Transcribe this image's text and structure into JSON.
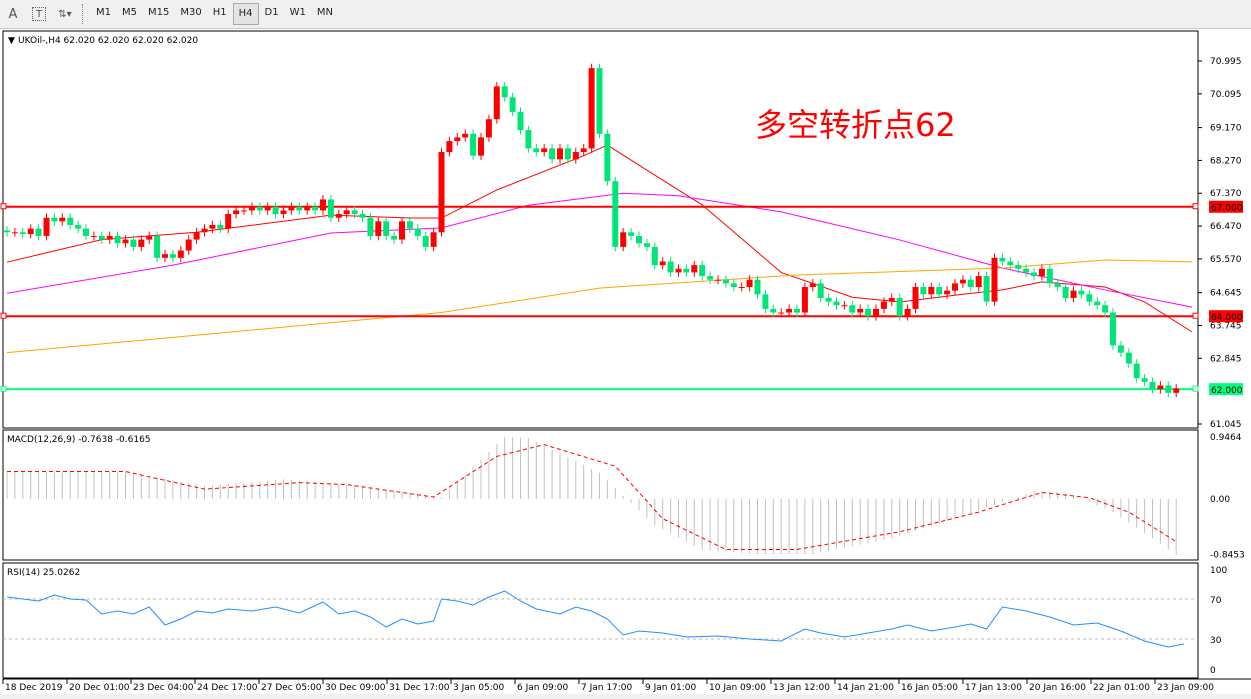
{
  "toolbar": {
    "tools": [
      {
        "icon": "text-label-icon",
        "glyph": "A"
      },
      {
        "icon": "text-box-icon",
        "glyph": "T"
      },
      {
        "icon": "arrows-dropdown-icon",
        "glyph": "⇅▾"
      }
    ],
    "timeframes": [
      "M1",
      "M5",
      "M15",
      "M30",
      "H1",
      "H4",
      "D1",
      "W1",
      "MN"
    ],
    "active_timeframe": "H4"
  },
  "main": {
    "header": "UKOil-,H4  62.020 62.020 62.020 62.020",
    "annotation": "多空转折点62",
    "annotation_color": "#ff0000",
    "price_ticks": [
      "70.995",
      "70.095",
      "69.170",
      "68.270",
      "67.370",
      "66.470",
      "65.570",
      "64.645",
      "63.745",
      "62.845",
      "61.045"
    ],
    "hlines": [
      {
        "price": 67.0,
        "label": "67.000",
        "color": "#ff0000"
      },
      {
        "price": 64.0,
        "label": "64.000",
        "color": "#ff0000"
      },
      {
        "price": 62.0,
        "label": "62.000",
        "color": "#00ff7f"
      }
    ],
    "bull_color": "#ff0000",
    "bear_color": "#00e676"
  },
  "chart_data": {
    "type": "candlestick",
    "ylim": [
      61.045,
      70.995
    ],
    "closes": [
      66.3,
      66.3,
      66.25,
      66.4,
      66.2,
      66.7,
      66.6,
      66.7,
      66.5,
      66.4,
      66.2,
      66.2,
      66.1,
      66.2,
      66.0,
      66.1,
      65.9,
      66.1,
      66.2,
      65.6,
      65.7,
      65.6,
      65.8,
      66.1,
      66.3,
      66.4,
      66.5,
      66.4,
      66.8,
      66.9,
      66.9,
      67.0,
      66.9,
      67.0,
      66.8,
      66.9,
      67.0,
      66.9,
      67.0,
      66.9,
      67.2,
      66.7,
      66.8,
      66.9,
      66.8,
      66.7,
      66.2,
      66.6,
      66.2,
      66.1,
      66.6,
      66.4,
      66.2,
      65.9,
      66.3,
      68.5,
      68.8,
      68.9,
      69.0,
      68.4,
      68.9,
      69.4,
      70.3,
      70.0,
      69.6,
      69.1,
      68.6,
      68.5,
      68.6,
      68.3,
      68.6,
      68.3,
      68.5,
      68.6,
      70.8,
      69.0,
      67.7,
      65.9,
      66.3,
      66.2,
      66.0,
      65.9,
      65.4,
      65.5,
      65.2,
      65.3,
      65.2,
      65.4,
      65.1,
      65.0,
      65.0,
      64.9,
      64.8,
      64.8,
      65.0,
      64.6,
      64.2,
      64.1,
      64.1,
      64.2,
      64.1,
      64.8,
      64.9,
      64.5,
      64.4,
      64.3,
      64.3,
      64.1,
      64.2,
      64.0,
      64.2,
      64.4,
      64.5,
      64.0,
      64.2,
      64.8,
      64.6,
      64.8,
      64.6,
      64.7,
      64.9,
      65.0,
      64.8,
      65.1,
      64.4,
      65.6,
      65.5,
      65.4,
      65.3,
      65.2,
      65.1,
      65.3,
      64.9,
      64.8,
      64.5,
      64.7,
      64.6,
      64.4,
      64.3,
      64.1,
      63.2,
      63.0,
      62.7,
      62.3,
      62.2,
      62.0,
      62.1,
      61.9,
      62.02
    ],
    "moving_averages": [
      {
        "color": "#ff0000",
        "points": [
          [
            0,
            65.48
          ],
          [
            12,
            66.1
          ],
          [
            24,
            66.3
          ],
          [
            41,
            66.77
          ],
          [
            51,
            66.69
          ],
          [
            55,
            66.69
          ],
          [
            62,
            67.46
          ],
          [
            73,
            68.4
          ],
          [
            76,
            68.69
          ],
          [
            80,
            68.14
          ],
          [
            88,
            67.05
          ],
          [
            98,
            65.2
          ],
          [
            107,
            64.52
          ],
          [
            113,
            64.39
          ],
          [
            121,
            64.6
          ],
          [
            126,
            64.72
          ],
          [
            131,
            64.94
          ],
          [
            139,
            64.8
          ],
          [
            144,
            64.39
          ],
          [
            150,
            63.57
          ]
        ]
      },
      {
        "color": "#ff00ff",
        "points": [
          [
            0,
            64.63
          ],
          [
            21,
            65.4
          ],
          [
            41,
            66.28
          ],
          [
            55,
            66.42
          ],
          [
            66,
            67.04
          ],
          [
            78,
            67.37
          ],
          [
            85,
            67.3
          ],
          [
            98,
            66.86
          ],
          [
            113,
            66.09
          ],
          [
            126,
            65.32
          ],
          [
            139,
            64.72
          ],
          [
            150,
            64.25
          ]
        ]
      },
      {
        "color": "#ffa500",
        "points": [
          [
            0,
            63.0
          ],
          [
            55,
            64.1
          ],
          [
            75,
            64.77
          ],
          [
            100,
            65.13
          ],
          [
            126,
            65.32
          ],
          [
            139,
            65.54
          ],
          [
            150,
            65.49
          ]
        ]
      }
    ],
    "x_tick_labels": [
      "18 Dec 2019",
      "20 Dec 01:00",
      "23 Dec 04:00",
      "24 Dec 17:00",
      "27 Dec 05:00",
      "30 Dec 09:00",
      "31 Dec 17:00",
      "3 Jan 05:00",
      "6 Jan 09:00",
      "7 Jan 17:00",
      "9 Jan 01:00",
      "10 Jan 09:00",
      "13 Jan 12:00",
      "14 Jan 21:00",
      "16 Jan 05:00",
      "17 Jan 13:00",
      "20 Jan 16:00",
      "22 Jan 01:00",
      "23 Jan 09:00"
    ],
    "macd": {
      "label": "MACD(12,26,9) -0.7638 -0.6165",
      "ticks": [
        "0.9464",
        "0.00",
        "-0.8453"
      ],
      "ylim": [
        -0.8453,
        0.9464
      ],
      "histogram": [
        [
          0,
          0.42
        ],
        [
          15,
          0.42
        ],
        [
          25,
          0.2
        ],
        [
          35,
          0.3
        ],
        [
          45,
          0.2
        ],
        [
          55,
          0.02
        ],
        [
          60,
          0.6
        ],
        [
          63,
          0.95
        ],
        [
          66,
          0.93
        ],
        [
          75,
          0.4
        ],
        [
          78,
          0.05
        ],
        [
          82,
          -0.4
        ],
        [
          88,
          -0.78
        ],
        [
          95,
          -0.84
        ],
        [
          102,
          -0.84
        ],
        [
          112,
          -0.6
        ],
        [
          120,
          -0.3
        ],
        [
          126,
          -0.05
        ],
        [
          130,
          0.12
        ],
        [
          134,
          0.1
        ],
        [
          140,
          -0.2
        ],
        [
          145,
          -0.6
        ],
        [
          148,
          -0.85
        ]
      ],
      "signal": [
        [
          0,
          0.42
        ],
        [
          15,
          0.42
        ],
        [
          25,
          0.15
        ],
        [
          37,
          0.25
        ],
        [
          43,
          0.22
        ],
        [
          54,
          0.03
        ],
        [
          62,
          0.65
        ],
        [
          68,
          0.83
        ],
        [
          77,
          0.5
        ],
        [
          83,
          -0.3
        ],
        [
          91,
          -0.77
        ],
        [
          100,
          -0.77
        ],
        [
          113,
          -0.5
        ],
        [
          123,
          -0.2
        ],
        [
          131,
          0.1
        ],
        [
          137,
          0.02
        ],
        [
          142,
          -0.2
        ],
        [
          148,
          -0.65
        ]
      ],
      "histogram_color": "#c0c0c0",
      "signal_color": "#ff0000"
    },
    "rsi": {
      "label": "RSI(14) 25.0262",
      "ticks": [
        "100",
        "70",
        "30",
        "0"
      ],
      "levels": [
        70,
        30
      ],
      "ylim": [
        0,
        100
      ],
      "color": "#1e90ff",
      "points": [
        [
          0,
          72
        ],
        [
          4,
          68
        ],
        [
          6,
          74
        ],
        [
          8,
          70
        ],
        [
          10,
          69
        ],
        [
          12,
          55
        ],
        [
          14,
          58
        ],
        [
          16,
          55
        ],
        [
          18,
          62
        ],
        [
          20,
          44
        ],
        [
          22,
          50
        ],
        [
          24,
          58
        ],
        [
          26,
          56
        ],
        [
          28,
          60
        ],
        [
          31,
          58
        ],
        [
          34,
          62
        ],
        [
          37,
          56
        ],
        [
          40,
          67
        ],
        [
          42,
          55
        ],
        [
          44,
          58
        ],
        [
          46,
          52
        ],
        [
          48,
          42
        ],
        [
          50,
          50
        ],
        [
          52,
          45
        ],
        [
          54,
          48
        ],
        [
          55,
          70
        ],
        [
          57,
          68
        ],
        [
          59,
          64
        ],
        [
          61,
          72
        ],
        [
          63,
          78
        ],
        [
          65,
          68
        ],
        [
          67,
          60
        ],
        [
          70,
          55
        ],
        [
          72,
          62
        ],
        [
          74,
          58
        ],
        [
          76,
          50
        ],
        [
          78,
          34
        ],
        [
          80,
          38
        ],
        [
          83,
          36
        ],
        [
          86,
          32
        ],
        [
          90,
          33
        ],
        [
          94,
          30
        ],
        [
          98,
          28
        ],
        [
          101,
          40
        ],
        [
          103,
          36
        ],
        [
          106,
          32
        ],
        [
          109,
          36
        ],
        [
          112,
          40
        ],
        [
          114,
          44
        ],
        [
          117,
          38
        ],
        [
          120,
          42
        ],
        [
          122,
          45
        ],
        [
          124,
          40
        ],
        [
          126,
          62
        ],
        [
          129,
          58
        ],
        [
          132,
          52
        ],
        [
          135,
          44
        ],
        [
          138,
          46
        ],
        [
          141,
          38
        ],
        [
          144,
          28
        ],
        [
          147,
          22
        ],
        [
          149,
          25
        ]
      ]
    }
  }
}
